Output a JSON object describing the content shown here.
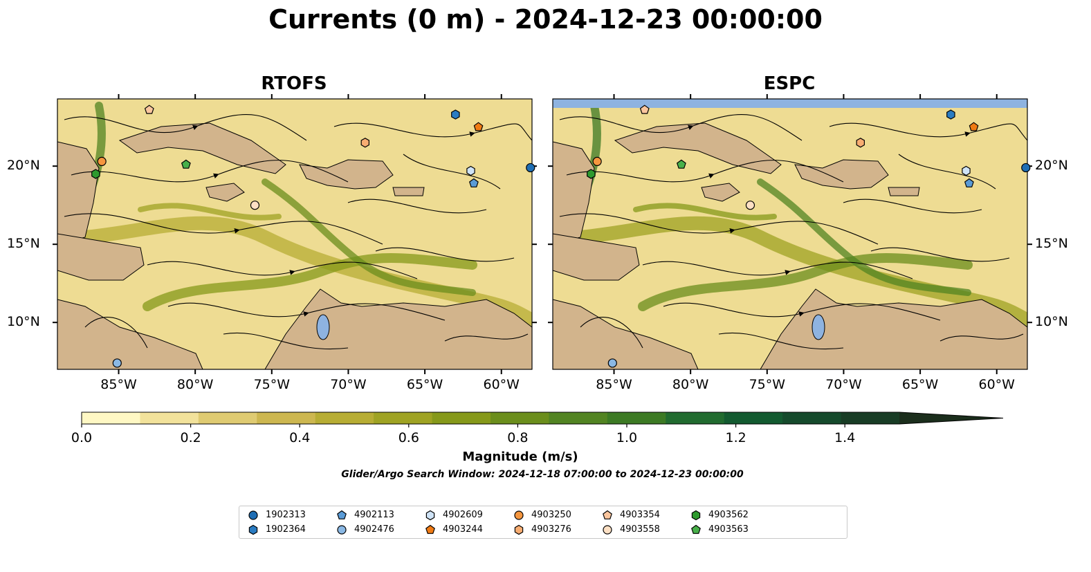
{
  "title": "Currents (0 m) - 2024-12-23 00:00:00",
  "panels": [
    {
      "name": "RTOFS"
    },
    {
      "name": "ESPC"
    }
  ],
  "axes": {
    "longitudes": [
      "85°W",
      "80°W",
      "75°W",
      "70°W",
      "65°W",
      "60°W"
    ],
    "latitudes": [
      "20°N",
      "15°N",
      "10°N"
    ],
    "lon_range": [
      -89.0,
      -58.0
    ],
    "lat_range": [
      7.0,
      24.3
    ]
  },
  "colorbar": {
    "label": "Magnitude (m/s)",
    "ticks": [
      "0.0",
      "0.2",
      "0.4",
      "0.6",
      "0.8",
      "1.0",
      "1.2",
      "1.4"
    ],
    "range": [
      0.0,
      1.5
    ],
    "extend": "max",
    "colors": [
      "#fff8c4",
      "#f2e29b",
      "#dfcb72",
      "#cdb750",
      "#b7ad34",
      "#9fa323",
      "#86991a",
      "#6b8e1c",
      "#528422",
      "#3c7a24",
      "#216b2f",
      "#135a30",
      "#154a2c",
      "#183c25",
      "#1b2e1c"
    ]
  },
  "map_colors": {
    "land": "#d2b48c",
    "water_body": "#8eb3e0",
    "rivers": "#9ab4d6",
    "streamline": "#000000"
  },
  "search_window": "Glider/Argo Search Window: 2024-12-18 07:00:00 to 2024-12-23 00:00:00",
  "legend": [
    {
      "id": "1902313",
      "marker": "circle",
      "color": "#1f6eb4"
    },
    {
      "id": "1902364",
      "marker": "hexagon",
      "color": "#2a7cc2"
    },
    {
      "id": "4902113",
      "marker": "pentagon",
      "color": "#5a9bd6"
    },
    {
      "id": "4902476",
      "marker": "circle",
      "color": "#8ab8e4"
    },
    {
      "id": "4902609",
      "marker": "hexagon",
      "color": "#cfe3f6"
    },
    {
      "id": "4903244",
      "marker": "pentagon",
      "color": "#f07b14"
    },
    {
      "id": "4903250",
      "marker": "circle",
      "color": "#f5963f"
    },
    {
      "id": "4903276",
      "marker": "hexagon",
      "color": "#f8ad72"
    },
    {
      "id": "4903354",
      "marker": "pentagon",
      "color": "#fbc69e"
    },
    {
      "id": "4903558",
      "marker": "circle",
      "color": "#fde0c4"
    },
    {
      "id": "4903562",
      "marker": "hexagon",
      "color": "#2e9a2e"
    },
    {
      "id": "4903563",
      "marker": "pentagon",
      "color": "#48b04a"
    }
  ],
  "floats": [
    {
      "id": "4903354",
      "lon": -83.0,
      "lat": 23.6
    },
    {
      "id": "1902364",
      "lon": -63.0,
      "lat": 23.3
    },
    {
      "id": "4903244",
      "lon": -61.5,
      "lat": 22.5
    },
    {
      "id": "4903276",
      "lon": -68.9,
      "lat": 21.5
    },
    {
      "id": "4903250",
      "lon": -86.1,
      "lat": 20.3
    },
    {
      "id": "4903563",
      "lon": -80.6,
      "lat": 20.1
    },
    {
      "id": "4902609",
      "lon": -62.0,
      "lat": 19.7
    },
    {
      "id": "4903562",
      "lon": -86.5,
      "lat": 19.5
    },
    {
      "id": "4902113",
      "lon": -61.8,
      "lat": 18.9
    },
    {
      "id": "1902313",
      "lon": -58.1,
      "lat": 19.9
    },
    {
      "id": "4903558",
      "lon": -76.1,
      "lat": 17.5
    },
    {
      "id": "4902476",
      "lon": -85.1,
      "lat": 7.4
    }
  ]
}
